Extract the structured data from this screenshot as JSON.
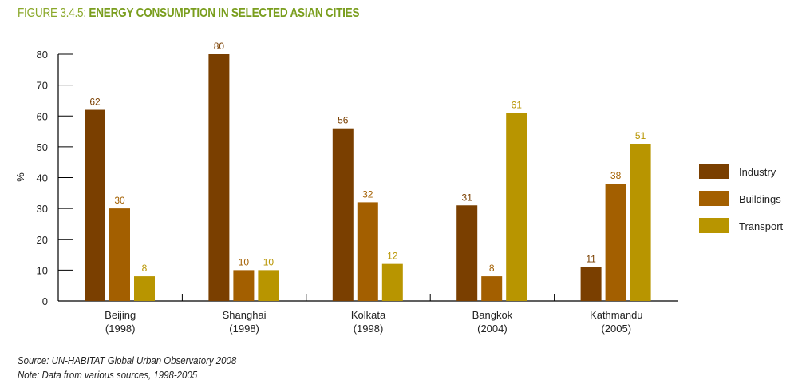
{
  "title_prefix": "FIGURE 3.4.5:",
  "title_main": "ENERGY CONSUMPTION IN SELECTED ASIAN CITIES",
  "source": "Source: UN-HABITAT Global Urban Observatory 2008",
  "note": "Note: Data from various sources, 1998-2005",
  "chart_data": {
    "type": "bar",
    "title": "ENERGY CONSUMPTION IN SELECTED ASIAN CITIES",
    "ylabel": "%",
    "xlabel": "",
    "ylim": [
      0,
      80
    ],
    "yticks": [
      0,
      10,
      20,
      30,
      40,
      50,
      60,
      70,
      80
    ],
    "categories": [
      [
        "Beijing",
        "(1998)"
      ],
      [
        "Shanghai",
        "(1998)"
      ],
      [
        "Kolkata",
        "(1998)"
      ],
      [
        "Bangkok",
        "(2004)"
      ],
      [
        "Kathmandu",
        "(2005)"
      ]
    ],
    "series": [
      {
        "name": "Industry",
        "color": "#7a3f00",
        "values": [
          62,
          80,
          56,
          31,
          11
        ]
      },
      {
        "name": "Buildings",
        "color": "#a35f00",
        "values": [
          30,
          10,
          32,
          8,
          38
        ]
      },
      {
        "name": "Transport",
        "color": "#b89500",
        "values": [
          8,
          10,
          12,
          61,
          51
        ]
      }
    ],
    "grid": false,
    "legend_position": "right"
  }
}
